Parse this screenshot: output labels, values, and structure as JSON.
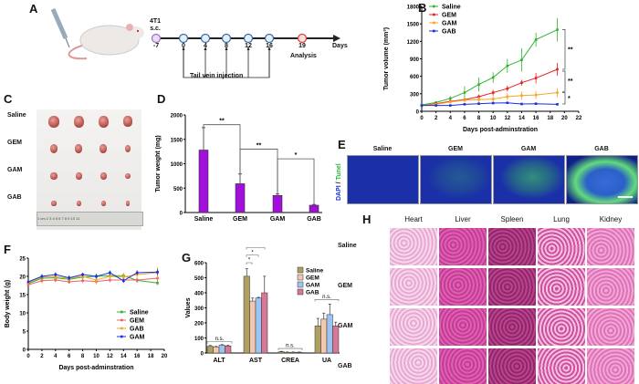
{
  "panels": {
    "A": "A",
    "B": "B",
    "C": "C",
    "D": "D",
    "E": "E",
    "F": "F",
    "G": "G",
    "H": "H"
  },
  "schematic": {
    "cell_line": "4T1",
    "route": "s.c.",
    "days": [
      "-7",
      "0",
      "4",
      "8",
      "12",
      "16",
      "19"
    ],
    "axis_label": "Days",
    "analysis": "Analysis",
    "injection": "Tail vein injection"
  },
  "photo": {
    "rows": [
      "Saline",
      "GEM",
      "GAM",
      "GAB"
    ],
    "ruler": "1 cm 2 3 4 5 6 7 8 9 10 11"
  },
  "tunel": {
    "groups": [
      "Saline",
      "GEM",
      "GAM",
      "GAB"
    ],
    "ylabel_dapi": "DAPI",
    "ylabel_sep": " / ",
    "ylabel_tunel": "Tunel",
    "colors": {
      "dapi": "#1a2fd0",
      "tunel": "#3fd24a"
    }
  },
  "he": {
    "organs": [
      "Heart",
      "Liver",
      "Spleen",
      "Lung",
      "Kidney"
    ],
    "rows": [
      "Saline",
      "GEM",
      "GAM",
      "GAB"
    ]
  },
  "chart_data": [
    {
      "id": "B",
      "type": "line",
      "xlabel": "Days post-adminstration",
      "ylabel": "Tumor volume (mm³)",
      "xlim": [
        0,
        22
      ],
      "ylim": [
        0,
        1800
      ],
      "xticks": [
        0,
        2,
        4,
        6,
        8,
        10,
        12,
        14,
        16,
        18,
        20,
        22
      ],
      "yticks": [
        0,
        300,
        600,
        900,
        1200,
        1500,
        1800
      ],
      "legend": "top-left",
      "x": [
        0,
        2,
        4,
        6,
        8,
        10,
        12,
        14,
        16,
        19
      ],
      "series": [
        {
          "name": "Saline",
          "color": "#2db52d",
          "values": [
            110,
            150,
            220,
            320,
            460,
            580,
            780,
            880,
            1230,
            1400
          ],
          "err": [
            10,
            20,
            40,
            110,
            120,
            90,
            120,
            200,
            120,
            200
          ]
        },
        {
          "name": "GEM",
          "color": "#e82020",
          "values": [
            100,
            130,
            170,
            200,
            250,
            320,
            390,
            490,
            570,
            720
          ],
          "err": [
            10,
            20,
            30,
            30,
            40,
            50,
            50,
            50,
            90,
            110
          ]
        },
        {
          "name": "GAM",
          "color": "#f5a623",
          "values": [
            100,
            120,
            160,
            190,
            200,
            210,
            250,
            270,
            280,
            320
          ],
          "err": [
            10,
            20,
            30,
            40,
            50,
            60,
            60,
            70,
            70,
            80
          ]
        },
        {
          "name": "GAB",
          "color": "#1a2fe0",
          "values": [
            100,
            100,
            100,
            120,
            130,
            140,
            145,
            125,
            130,
            120
          ],
          "err": [
            10,
            10,
            10,
            15,
            15,
            15,
            15,
            15,
            15,
            15
          ]
        }
      ],
      "significance": [
        "**",
        "**",
        "*"
      ]
    },
    {
      "id": "D",
      "type": "bar",
      "ylabel": "Tumor weight (mg)",
      "ylim": [
        0,
        2000
      ],
      "yticks": [
        0,
        500,
        1000,
        1500,
        2000
      ],
      "categories": [
        "Saline",
        "GEM",
        "GAM",
        "GAB"
      ],
      "values": [
        1280,
        590,
        350,
        150
      ],
      "err": [
        460,
        200,
        30,
        15
      ],
      "color": "#a010d8",
      "significance": [
        "**",
        "**",
        "*"
      ]
    },
    {
      "id": "F",
      "type": "line",
      "xlabel": "Days post-adminstration",
      "ylabel": "Body  weight (g)",
      "xlim": [
        0,
        20
      ],
      "ylim": [
        0,
        25
      ],
      "xticks": [
        0,
        2,
        4,
        6,
        8,
        10,
        12,
        14,
        16,
        18,
        20
      ],
      "yticks": [
        0,
        5,
        10,
        15,
        20,
        25
      ],
      "legend": "right",
      "x": [
        0,
        2,
        4,
        6,
        8,
        10,
        12,
        14,
        16,
        19
      ],
      "series": [
        {
          "name": "Saline",
          "color": "#2db52d",
          "values": [
            18,
            19.5,
            19.6,
            19.2,
            19.8,
            20,
            20.2,
            20.2,
            18.9,
            18.2
          ],
          "err": [
            0.4,
            0.6,
            0.8,
            0.8,
            0.6,
            0.8,
            0.6,
            0.6,
            0.6,
            0.6
          ]
        },
        {
          "name": "GEM",
          "color": "#f06060",
          "values": [
            17.7,
            18.8,
            19,
            18.5,
            18.8,
            18.6,
            19,
            19,
            19,
            19.5
          ],
          "err": [
            0.4,
            0.6,
            0.6,
            0.5,
            0.5,
            0.6,
            0.6,
            0.6,
            0.6,
            1.5
          ]
        },
        {
          "name": "GAB",
          "color": "#f5a623",
          "values": [
            18.3,
            19.8,
            19.9,
            19.5,
            20,
            19,
            20,
            19.8,
            20.5,
            21
          ],
          "err": [
            0.4,
            0.8,
            0.8,
            0.8,
            0.8,
            1.2,
            1,
            1.2,
            1.2,
            1.5
          ]
        },
        {
          "name": "GAM",
          "color": "#1a2fe0",
          "values": [
            18.5,
            20,
            20.5,
            19.6,
            20.5,
            20,
            21,
            18.8,
            21,
            21.2
          ],
          "err": [
            0.4,
            0.6,
            0.6,
            0.6,
            0.5,
            0.6,
            0.6,
            0.6,
            0.6,
            0.8
          ]
        }
      ]
    },
    {
      "id": "G",
      "type": "bar",
      "ylabel": "Values",
      "ylim": [
        0,
        600
      ],
      "yticks": [
        0,
        100,
        200,
        300,
        400,
        500,
        600
      ],
      "categories": [
        "ALT",
        "AST",
        "CREA",
        "UA"
      ],
      "legend": "top-right",
      "series": [
        {
          "name": "Saline",
          "color": "#b0a060",
          "values": [
            45,
            510,
            8,
            180
          ],
          "err": [
            5,
            50,
            3,
            50
          ]
        },
        {
          "name": "GEM",
          "color": "#f2c8b0",
          "values": [
            40,
            345,
            5,
            225
          ],
          "err": [
            4,
            20,
            2,
            40
          ]
        },
        {
          "name": "GAM",
          "color": "#9cc4f0",
          "values": [
            52,
            365,
            5,
            255
          ],
          "err": [
            4,
            5,
            2,
            70
          ]
        },
        {
          "name": "GAB",
          "color": "#d87898",
          "values": [
            47,
            400,
            5,
            180
          ],
          "err": [
            4,
            110,
            2,
            25
          ]
        }
      ],
      "significance": {
        "ALT": "n.s.",
        "AST": [
          "*",
          "*",
          "n.s."
        ],
        "CREA": "n.s.",
        "UA": "n.s."
      }
    }
  ]
}
